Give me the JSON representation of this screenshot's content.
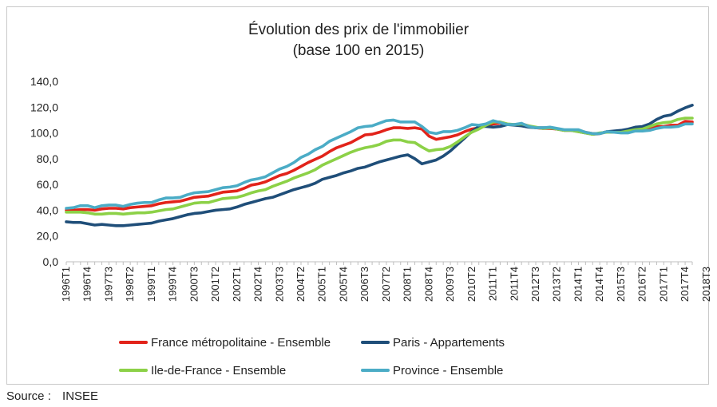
{
  "chart_data": {
    "type": "line",
    "title": "Évolution des prix de l'immobilier",
    "subtitle": "(base 100 en 2015)",
    "xlabel": "",
    "ylabel": "",
    "ylim": [
      0,
      140
    ],
    "y_ticks": [
      "0,0",
      "20,0",
      "40,0",
      "60,0",
      "80,0",
      "100,0",
      "120,0",
      "140,0"
    ],
    "x_tick_labels": [
      "1996T1",
      "1996T4",
      "1997T3",
      "1998T2",
      "1999T1",
      "1999T4",
      "2000T3",
      "2001T2",
      "2002T1",
      "2002T4",
      "2003T3",
      "2004T2",
      "2005T1",
      "2005T4",
      "2006T3",
      "2007T2",
      "2008T1",
      "2008T4",
      "2009T3",
      "2010T2",
      "2011T1",
      "2011T4",
      "2012T3",
      "2013T2",
      "2014T1",
      "2014T4",
      "2015T3",
      "2016T2",
      "2017T1",
      "2017T4",
      "2018T3"
    ],
    "grid": false,
    "legend_placement": "bottom",
    "start_period": "1996T1",
    "series": [
      {
        "name": "France métropolitaine - Ensemble",
        "color": "#e2231a",
        "values": [
          40,
          40,
          40.5,
          40.5,
          40,
          41,
          41.5,
          41.5,
          41,
          42,
          42.5,
          43,
          43.5,
          45,
          46,
          46.5,
          47,
          48.5,
          50,
          50.5,
          51,
          52.5,
          54,
          54.5,
          55,
          57,
          59.5,
          60.5,
          62,
          64.5,
          67,
          68.5,
          71,
          74,
          77,
          79.5,
          82,
          85.5,
          88.5,
          90.5,
          92.5,
          95.5,
          98.5,
          99,
          100.5,
          102.5,
          104,
          104,
          103.5,
          104,
          103,
          97.5,
          95,
          96,
          97,
          98.5,
          101,
          103,
          104,
          105.5,
          107,
          107.5,
          106.5,
          106.5,
          107,
          105.5,
          104,
          103.5,
          103.5,
          103,
          102,
          102,
          102,
          100.5,
          99.5,
          99.5,
          101,
          100.5,
          101,
          102,
          102.5,
          103,
          104,
          105,
          105,
          106,
          106,
          109,
          108.5
        ]
      },
      {
        "name": "Paris - Appartements",
        "color": "#1f4e79",
        "values": [
          31,
          30.5,
          30.5,
          29.5,
          28.5,
          29,
          28.5,
          28,
          28,
          28.5,
          29,
          29.5,
          30,
          31.5,
          32.5,
          33.5,
          35,
          36.5,
          37.5,
          38,
          39,
          40,
          40.5,
          41,
          42.5,
          44.5,
          46,
          47.5,
          49,
          50,
          52,
          54,
          56,
          57.5,
          59,
          61,
          64,
          65.5,
          67,
          69,
          70.5,
          72.5,
          73.5,
          75.5,
          77.5,
          79,
          80.5,
          82,
          83,
          80,
          76,
          77.5,
          79,
          82,
          86,
          91,
          96,
          101,
          105,
          105,
          104.5,
          105,
          106.5,
          106,
          105.5,
          104.5,
          104,
          104,
          104,
          103,
          102,
          102,
          101,
          100,
          99,
          99.5,
          101,
          101.5,
          102,
          103,
          104.5,
          105,
          107,
          110.5,
          113,
          114,
          117,
          119.5,
          121.5
        ]
      },
      {
        "name": "Ile-de-France - Ensemble",
        "color": "#8cd147",
        "values": [
          38.5,
          38.5,
          38.5,
          38,
          37,
          37,
          37.5,
          37.5,
          37,
          37.5,
          38,
          38,
          38.5,
          39.5,
          40.5,
          41,
          42.5,
          44,
          45.5,
          46,
          46,
          47.5,
          49,
          49.5,
          50,
          51.5,
          53.5,
          55,
          56,
          58.5,
          60.5,
          62.5,
          65,
          67,
          69,
          71.5,
          75,
          77.5,
          80,
          82.5,
          85,
          87,
          88.5,
          89.5,
          91,
          93.5,
          94.5,
          94.5,
          93,
          92.5,
          89,
          86,
          87,
          87.5,
          89.5,
          93,
          97,
          100.5,
          103,
          106,
          108.5,
          108.5,
          107,
          106.5,
          107,
          105.5,
          104.5,
          103.5,
          104,
          103,
          102,
          102,
          101,
          100,
          99,
          100,
          100.5,
          100.5,
          100.5,
          101.5,
          102.5,
          103,
          105,
          107,
          108,
          108.5,
          110.5,
          111.5,
          111.5
        ]
      },
      {
        "name": "Province - Ensemble",
        "color": "#4bacc6",
        "values": [
          41.5,
          42,
          43.5,
          43.5,
          42,
          43.5,
          44,
          44,
          43,
          44.5,
          45.5,
          46,
          46,
          48,
          49.5,
          49.5,
          50,
          52,
          53.5,
          54,
          54.5,
          56,
          57.5,
          58,
          59,
          61.5,
          63.5,
          64.5,
          66,
          69,
          72,
          74,
          77,
          81,
          83.5,
          87,
          89.5,
          93.5,
          96,
          98.5,
          101,
          104,
          105,
          105.5,
          107.5,
          109.5,
          110,
          108.5,
          108.5,
          108.5,
          105,
          100.5,
          99.5,
          101,
          101,
          102,
          104,
          106.5,
          106,
          107,
          109.5,
          108,
          106.5,
          106.5,
          107.5,
          105,
          104,
          104,
          104.5,
          103.5,
          102.5,
          102.5,
          102.5,
          100.5,
          99.5,
          99.5,
          101,
          100.5,
          100,
          100,
          101.5,
          101.5,
          102,
          103.5,
          104.5,
          104.5,
          105,
          107,
          107
        ]
      }
    ]
  },
  "footer": {
    "source_label": "Source :",
    "source_value": "INSEE"
  }
}
